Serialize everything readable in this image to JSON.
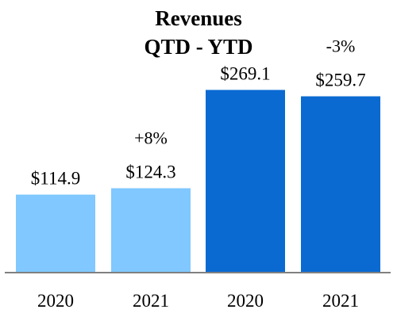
{
  "chart_data": {
    "type": "bar",
    "title": "Revenues",
    "subtitle": "QTD - YTD",
    "categories": [
      "2020",
      "2021",
      "2020",
      "2021"
    ],
    "values": [
      114.9,
      124.3,
      269.1,
      259.7
    ],
    "value_labels": [
      "$114.9",
      "$124.3",
      "$269.1",
      "$259.7"
    ],
    "bar_colors": [
      "#80c8ff",
      "#80c8ff",
      "#0a6ad2",
      "#0a6ad2"
    ],
    "annotations": [
      {
        "text": "+8%",
        "category_index": 1
      },
      {
        "text": "-3%",
        "category_index": 3
      }
    ],
    "ylim": [
      0,
      300
    ],
    "grid": false,
    "legend": "none",
    "axis_color": "#808080"
  }
}
